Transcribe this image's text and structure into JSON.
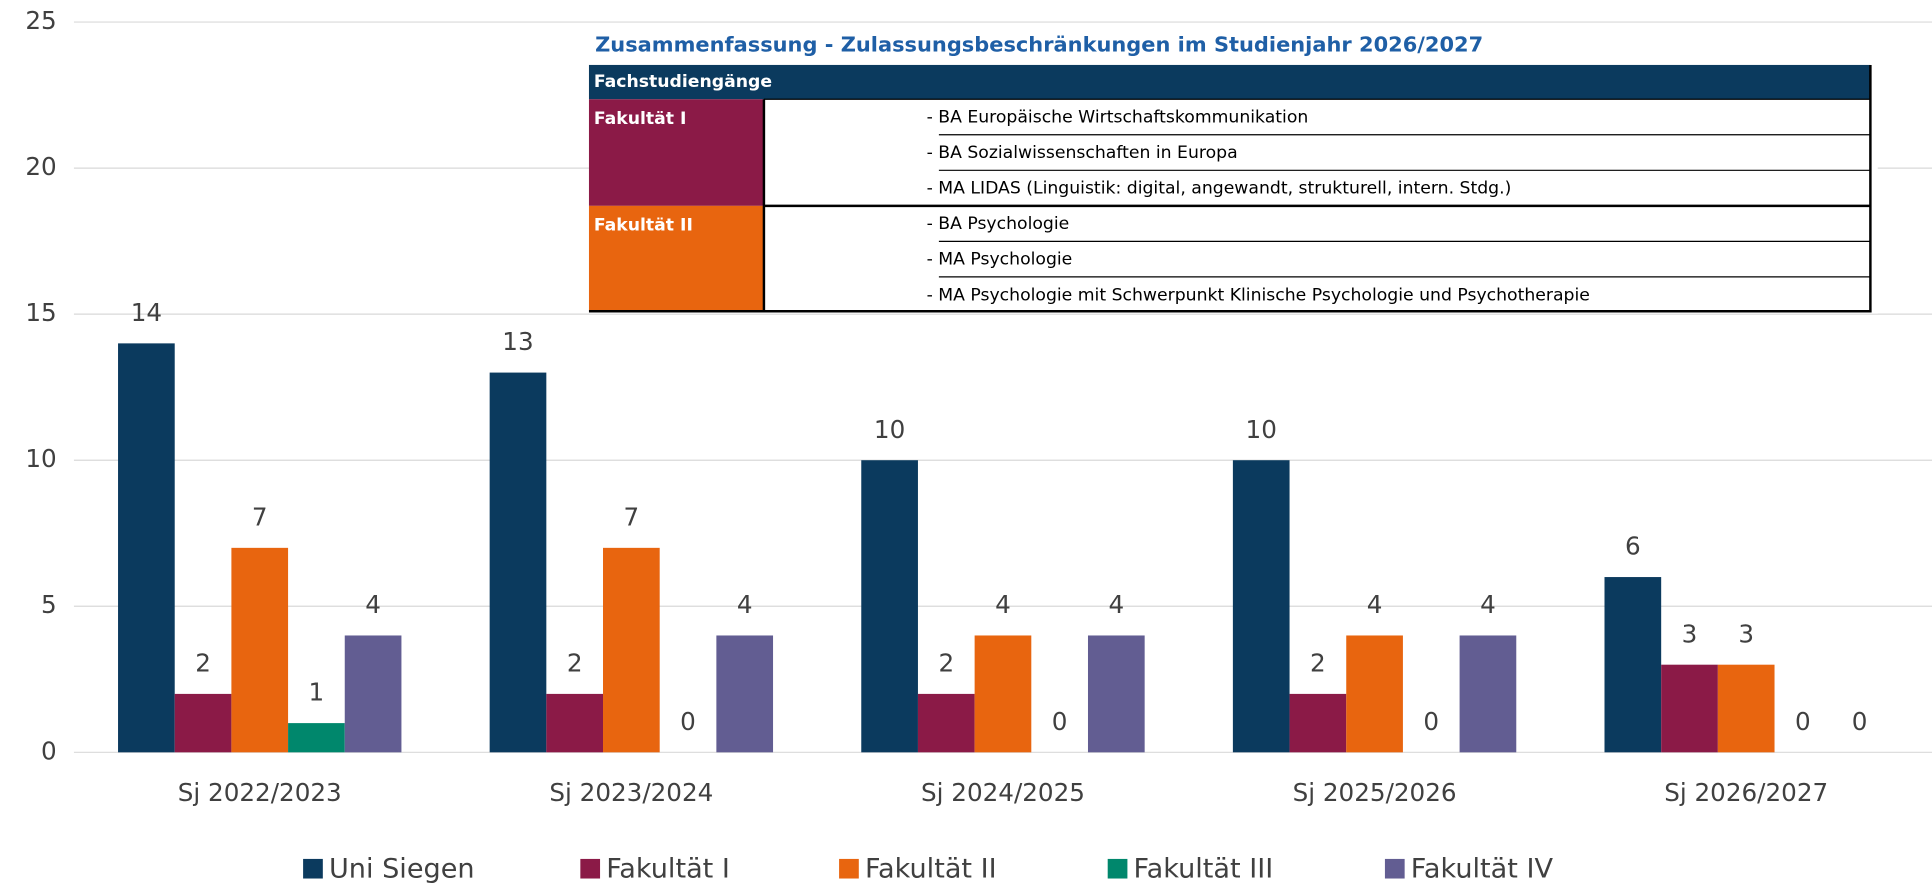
{
  "chart_data": {
    "type": "bar",
    "categories": [
      "Sj 2022/2023",
      "Sj 2023/2024",
      "Sj 2024/2025",
      "Sj 2025/2026",
      "Sj 2026/2027"
    ],
    "series": [
      {
        "name": "Uni Siegen",
        "color": "#0b3a5e",
        "values": [
          14,
          13,
          10,
          10,
          6
        ]
      },
      {
        "name": "Fakultät I",
        "color": "#8b1a47",
        "values": [
          2,
          2,
          2,
          2,
          3
        ]
      },
      {
        "name": "Fakultät II",
        "color": "#e8650f",
        "values": [
          7,
          7,
          4,
          4,
          3
        ]
      },
      {
        "name": "Fakultät III",
        "color": "#00876c",
        "values": [
          1,
          0,
          0,
          0,
          0
        ]
      },
      {
        "name": "Fakultät IV",
        "color": "#625d92",
        "values": [
          4,
          4,
          4,
          4,
          0
        ]
      }
    ],
    "ylim": [
      0,
      25
    ],
    "yticks": [
      0,
      5,
      10,
      15,
      20,
      25
    ],
    "grid": true,
    "legend": "bottom",
    "inset": {
      "title": "Zusammenfassung - Zulassungsbeschränkungen im Studienjahr 2026/2027",
      "header": "Fachstudiengänge",
      "groups": [
        {
          "label": "Fakultät I",
          "color": "#8b1a47",
          "items": [
            "- BA Europäische Wirtschaftskommunikation",
            "- BA Sozialwissenschaften in Europa",
            "- MA LIDAS (Linguistik: digital, angewandt, strukturell, intern. Stdg.)"
          ]
        },
        {
          "label": "Fakultät II",
          "color": "#e8650f",
          "items": [
            "- BA Psychologie",
            "- MA Psychologie",
            "- MA Psychologie mit Schwerpunkt Klinische Psychologie und Psychotherapie"
          ]
        }
      ]
    }
  }
}
